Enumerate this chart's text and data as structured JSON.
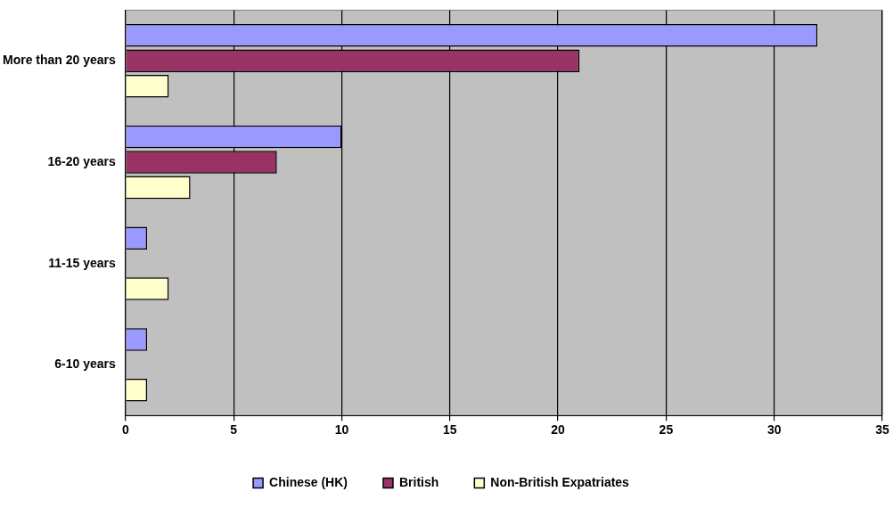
{
  "chart_data": {
    "type": "bar",
    "orientation": "horizontal",
    "categories": [
      "More than 20 years",
      "16-20 years",
      "11-15 years",
      "6-10 years"
    ],
    "series": [
      {
        "name": "Chinese (HK)",
        "color": "#9999ff",
        "values": [
          32,
          10,
          1,
          1
        ]
      },
      {
        "name": "British",
        "color": "#993366",
        "values": [
          21,
          7,
          0,
          0
        ]
      },
      {
        "name": "Non-British Expatriates",
        "color": "#ffffcc",
        "values": [
          2,
          3,
          2,
          1
        ]
      }
    ],
    "xlim": [
      0,
      35
    ],
    "xticks": [
      0,
      5,
      10,
      15,
      20,
      25,
      30,
      35
    ],
    "grid": "x",
    "legend": "bottom"
  }
}
